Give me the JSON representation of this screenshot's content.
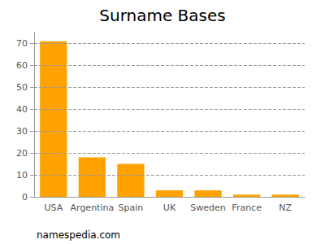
{
  "chart_data": {
    "type": "bar",
    "title": "Surname Bases",
    "categories": [
      "USA",
      "Argentina",
      "Spain",
      "UK",
      "Sweden",
      "France",
      "NZ"
    ],
    "values": [
      71,
      18,
      15,
      3,
      3,
      1,
      1
    ],
    "color": "#ffa200",
    "ylim": [
      0,
      75
    ],
    "yticks": [
      0,
      10,
      20,
      30,
      40,
      50,
      60,
      70
    ],
    "grid": true,
    "footer": "namespedia.com"
  }
}
